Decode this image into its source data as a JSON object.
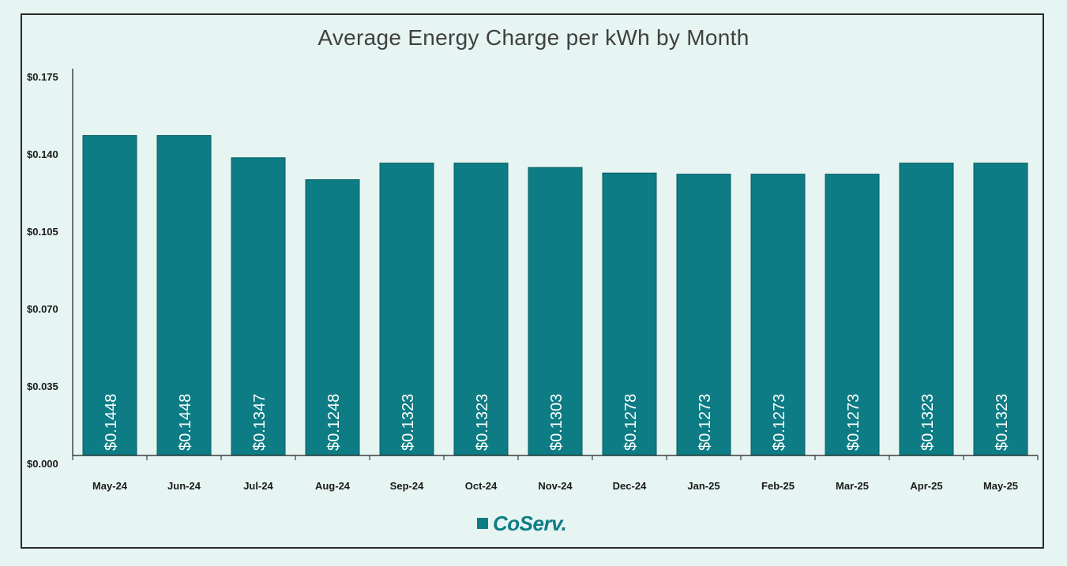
{
  "colors": {
    "bar": "#0d7c84",
    "bar_label": "#ffffff",
    "axis": "#1a1a1a",
    "text": "#1a1a1a",
    "background": "#e6f4f2"
  },
  "logo": {
    "text": "CoServ."
  },
  "chart_data": {
    "type": "bar",
    "title": "Average Energy Charge per kWh by Month",
    "xlabel": "",
    "ylabel": "",
    "ylim": [
      0,
      0.175
    ],
    "y_ticks": [
      0.0,
      0.035,
      0.07,
      0.105,
      0.14,
      0.175
    ],
    "y_tick_labels": [
      "$0.000",
      "$0.035",
      "$0.070",
      "$0.105",
      "$0.140",
      "$0.175"
    ],
    "categories": [
      "May-24",
      "Jun-24",
      "Jul-24",
      "Aug-24",
      "Sep-24",
      "Oct-24",
      "Nov-24",
      "Dec-24",
      "Jan-25",
      "Feb-25",
      "Mar-25",
      "Apr-25",
      "May-25"
    ],
    "values": [
      0.1448,
      0.1448,
      0.1347,
      0.1248,
      0.1323,
      0.1323,
      0.1303,
      0.1278,
      0.1273,
      0.1273,
      0.1273,
      0.1323,
      0.1323
    ],
    "data_labels": [
      "$0.1448",
      "$0.1448",
      "$0.1347",
      "$0.1248",
      "$0.1323",
      "$0.1323",
      "$0.1303",
      "$0.1278",
      "$0.1273",
      "$0.1273",
      "$0.1273",
      "$0.1323",
      "$0.1323"
    ],
    "grid": false,
    "legend": "none"
  }
}
